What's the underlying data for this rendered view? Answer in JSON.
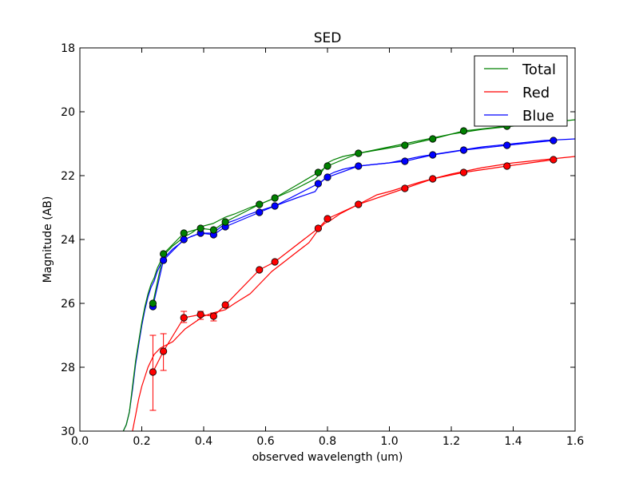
{
  "chart_data": {
    "type": "line",
    "title": "SED",
    "xlabel": "observed wavelength (um)",
    "ylabel": "Magnitude (AB)",
    "xlim": [
      0.0,
      1.6
    ],
    "ylim": [
      30,
      18
    ],
    "y_inverted": true,
    "x_ticks": [
      "0.0",
      "0.2",
      "0.4",
      "0.6",
      "0.8",
      "1.0",
      "1.2",
      "1.4",
      "1.6"
    ],
    "y_ticks": [
      "18",
      "20",
      "22",
      "24",
      "26",
      "28",
      "30"
    ],
    "grid": false,
    "legend_position": "top-right",
    "series": [
      {
        "name": "Total",
        "color": "#008000",
        "spectrum": {
          "x": [
            0.14,
            0.15,
            0.16,
            0.17,
            0.18,
            0.19,
            0.2,
            0.21,
            0.22,
            0.23,
            0.24,
            0.25,
            0.27,
            0.3,
            0.34,
            0.36,
            0.39,
            0.43,
            0.47,
            0.5,
            0.55,
            0.58,
            0.63,
            0.7,
            0.76,
            0.78,
            0.8,
            0.82,
            0.85,
            0.9,
            0.95,
            1.0,
            1.05,
            1.1,
            1.2,
            1.3,
            1.4,
            1.5,
            1.6
          ],
          "y": [
            30.0,
            29.8,
            29.4,
            28.6,
            27.8,
            27.2,
            26.6,
            26.1,
            25.7,
            25.4,
            25.2,
            24.9,
            24.5,
            24.2,
            23.9,
            23.8,
            23.6,
            23.5,
            23.3,
            23.2,
            23.0,
            22.9,
            22.7,
            22.4,
            22.1,
            21.9,
            21.6,
            21.5,
            21.4,
            21.3,
            21.2,
            21.1,
            21.0,
            20.9,
            20.7,
            20.55,
            20.45,
            20.35,
            20.25
          ]
        },
        "photometry": {
          "x": [
            0.236,
            0.27,
            0.336,
            0.39,
            0.432,
            0.47,
            0.58,
            0.63,
            0.77,
            0.8,
            0.9,
            1.05,
            1.14,
            1.24,
            1.38
          ],
          "y": [
            26.0,
            24.45,
            23.8,
            23.65,
            23.7,
            23.45,
            22.9,
            22.7,
            21.9,
            21.7,
            21.3,
            21.05,
            20.85,
            20.6,
            20.45
          ]
        }
      },
      {
        "name": "Red",
        "color": "#ff0000",
        "spectrum": {
          "x": [
            0.17,
            0.18,
            0.19,
            0.2,
            0.21,
            0.22,
            0.23,
            0.24,
            0.26,
            0.28,
            0.3,
            0.32,
            0.34,
            0.37,
            0.4,
            0.43,
            0.47,
            0.5,
            0.55,
            0.58,
            0.62,
            0.66,
            0.7,
            0.74,
            0.77,
            0.79,
            0.81,
            0.84,
            0.88,
            0.92,
            0.96,
            1.0,
            1.05,
            1.1,
            1.2,
            1.3,
            1.4,
            1.5,
            1.6
          ],
          "y": [
            30.0,
            29.5,
            29.0,
            28.6,
            28.3,
            28.0,
            27.8,
            27.6,
            27.4,
            27.3,
            27.2,
            27.0,
            26.8,
            26.6,
            26.4,
            26.3,
            26.2,
            26.0,
            25.7,
            25.4,
            25.0,
            24.7,
            24.4,
            24.1,
            23.7,
            23.5,
            23.4,
            23.2,
            23.0,
            22.8,
            22.6,
            22.5,
            22.35,
            22.2,
            21.95,
            21.75,
            21.6,
            21.5,
            21.4
          ]
        },
        "photometry": {
          "x": [
            0.236,
            0.27,
            0.336,
            0.39,
            0.432,
            0.47,
            0.58,
            0.63,
            0.77,
            0.8,
            0.9,
            1.05,
            1.14,
            1.24,
            1.38,
            1.53
          ],
          "y": [
            28.15,
            27.5,
            26.45,
            26.35,
            26.4,
            26.05,
            24.95,
            24.7,
            23.65,
            23.35,
            22.9,
            22.4,
            22.1,
            21.9,
            21.7,
            21.5
          ]
        },
        "error_bars": [
          {
            "x": 0.236,
            "low": 27.0,
            "high": 29.35
          },
          {
            "x": 0.27,
            "low": 26.95,
            "high": 28.1
          },
          {
            "x": 0.336,
            "low": 26.25,
            "high": 26.6
          },
          {
            "x": 0.39,
            "low": 26.25,
            "high": 26.5
          },
          {
            "x": 0.432,
            "low": 26.3,
            "high": 26.55
          }
        ]
      },
      {
        "name": "Blue",
        "color": "#0000ff",
        "spectrum": {
          "x": [
            0.14,
            0.15,
            0.16,
            0.17,
            0.18,
            0.19,
            0.2,
            0.21,
            0.22,
            0.23,
            0.24,
            0.25,
            0.27,
            0.3,
            0.34,
            0.36,
            0.39,
            0.43,
            0.47,
            0.5,
            0.55,
            0.58,
            0.63,
            0.7,
            0.76,
            0.78,
            0.8,
            0.82,
            0.85,
            0.9,
            0.95,
            1.0,
            1.05,
            1.1,
            1.2,
            1.3,
            1.4,
            1.5,
            1.6
          ],
          "y": [
            30.0,
            29.8,
            29.4,
            28.7,
            27.9,
            27.3,
            26.7,
            26.2,
            25.8,
            25.5,
            25.3,
            25.0,
            24.6,
            24.3,
            24.0,
            23.9,
            23.8,
            23.8,
            23.5,
            23.4,
            23.2,
            23.1,
            22.95,
            22.7,
            22.5,
            22.2,
            22.0,
            21.9,
            21.8,
            21.7,
            21.65,
            21.6,
            21.5,
            21.4,
            21.25,
            21.1,
            21.0,
            20.9,
            20.85
          ]
        },
        "photometry": {
          "x": [
            0.236,
            0.27,
            0.336,
            0.39,
            0.432,
            0.47,
            0.58,
            0.63,
            0.77,
            0.8,
            0.9,
            1.05,
            1.14,
            1.24,
            1.38,
            1.53
          ],
          "y": [
            26.1,
            24.65,
            24.0,
            23.8,
            23.85,
            23.6,
            23.15,
            22.95,
            22.25,
            22.05,
            21.7,
            21.55,
            21.35,
            21.2,
            21.05,
            20.9
          ]
        }
      }
    ]
  }
}
